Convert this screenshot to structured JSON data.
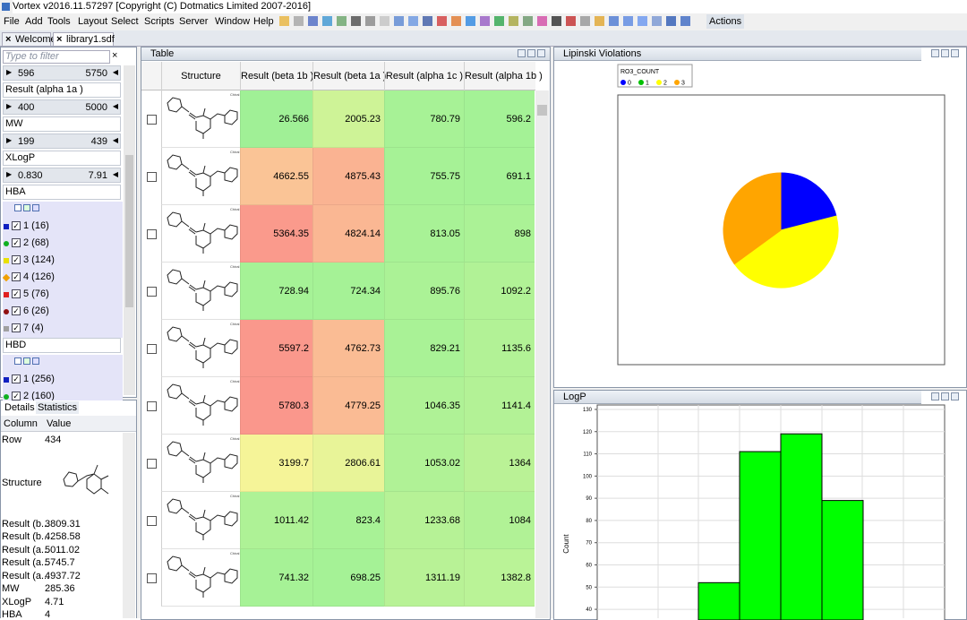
{
  "window": {
    "title": "Vortex v2016.11.57297 [Copyright (C) Dotmatics Limited 2007-2016]"
  },
  "menu": [
    "File",
    "Add",
    "Tools",
    "Layout",
    "Select",
    "Scripts",
    "Server",
    "Window",
    "Help"
  ],
  "toolbar_action": "Actions",
  "tabs": [
    "Welcome",
    "library1.sdf"
  ],
  "filter_panel": {
    "placeholder": "Type to filter",
    "items": [
      {
        "range": [
          "596",
          "5750"
        ]
      },
      {
        "label": "Result (alpha 1a )"
      },
      {
        "range": [
          "400",
          "5000"
        ]
      },
      {
        "label": "MW"
      },
      {
        "range": [
          "199",
          "439"
        ]
      },
      {
        "label": "XLogP"
      },
      {
        "range": [
          "0.830",
          "7.91"
        ]
      },
      {
        "label": "HBA"
      },
      {
        "checks": [
          "1 (16)",
          "2 (68)",
          "3 (124)",
          "4 (126)",
          "5 (76)",
          "6 (26)",
          "7 (4)"
        ]
      },
      {
        "label": "HBD"
      },
      {
        "checks": [
          "1 (256)",
          "2 (160)"
        ]
      }
    ]
  },
  "details": {
    "tabs": [
      "Details",
      "Statistics"
    ],
    "columns": [
      "Column",
      "Value"
    ],
    "rows": [
      {
        "column": "Row",
        "value": "434"
      },
      {
        "column": "Structure"
      },
      {
        "column": "Result (b...",
        "value": "3809.31"
      },
      {
        "column": "Result (b...",
        "value": "4258.58"
      },
      {
        "column": "Result (a...",
        "value": "5011.02"
      },
      {
        "column": "Result (a...",
        "value": "5745.7"
      },
      {
        "column": "Result (a...",
        "value": "4937.72"
      },
      {
        "column": "MW",
        "value": "285.36"
      },
      {
        "column": "XLogP",
        "value": "4.71"
      },
      {
        "column": "HBA",
        "value": "4"
      }
    ]
  },
  "table": {
    "title": "Table",
    "columns": [
      "Structure",
      "Result (beta 1b )",
      "Result (beta 1a )",
      "Result (alpha 1c )",
      "Result (alpha 1b )"
    ],
    "rows": [
      [
        26.566,
        2005.23,
        780.79,
        596.2
      ],
      [
        4662.55,
        4875.43,
        755.75,
        691.1
      ],
      [
        5364.35,
        4824.14,
        813.05,
        898
      ],
      [
        728.94,
        724.34,
        895.76,
        1092.2
      ],
      [
        5597.2,
        4762.73,
        829.21,
        1135.6
      ],
      [
        5780.3,
        4779.25,
        1046.35,
        1141.4
      ],
      [
        3199.7,
        2806.61,
        1053.02,
        1364
      ],
      [
        1011.42,
        823.4,
        1233.68,
        1084
      ],
      [
        741.32,
        698.25,
        1311.19,
        1382.8
      ]
    ]
  },
  "lipinski": {
    "title": "Lipinski Violations",
    "chart": {
      "type": "pie",
      "legend_title": "RO3_COUNT",
      "categories": [
        "0",
        "1",
        "2",
        "3"
      ],
      "values": [
        21,
        0,
        44,
        35
      ],
      "colors": [
        "#0000ff",
        "#00c000",
        "#ffff00",
        "#ffa500"
      ]
    }
  },
  "logp": {
    "title": "LogP",
    "chart": {
      "type": "bar",
      "y_label": "Count",
      "values": [
        52,
        111,
        119,
        89
      ],
      "color": "#00ff00",
      "ylim": [
        36,
        132
      ],
      "yticks": [
        40,
        50,
        60,
        70,
        80,
        90,
        100,
        110,
        120,
        130
      ],
      "grid": true
    }
  }
}
